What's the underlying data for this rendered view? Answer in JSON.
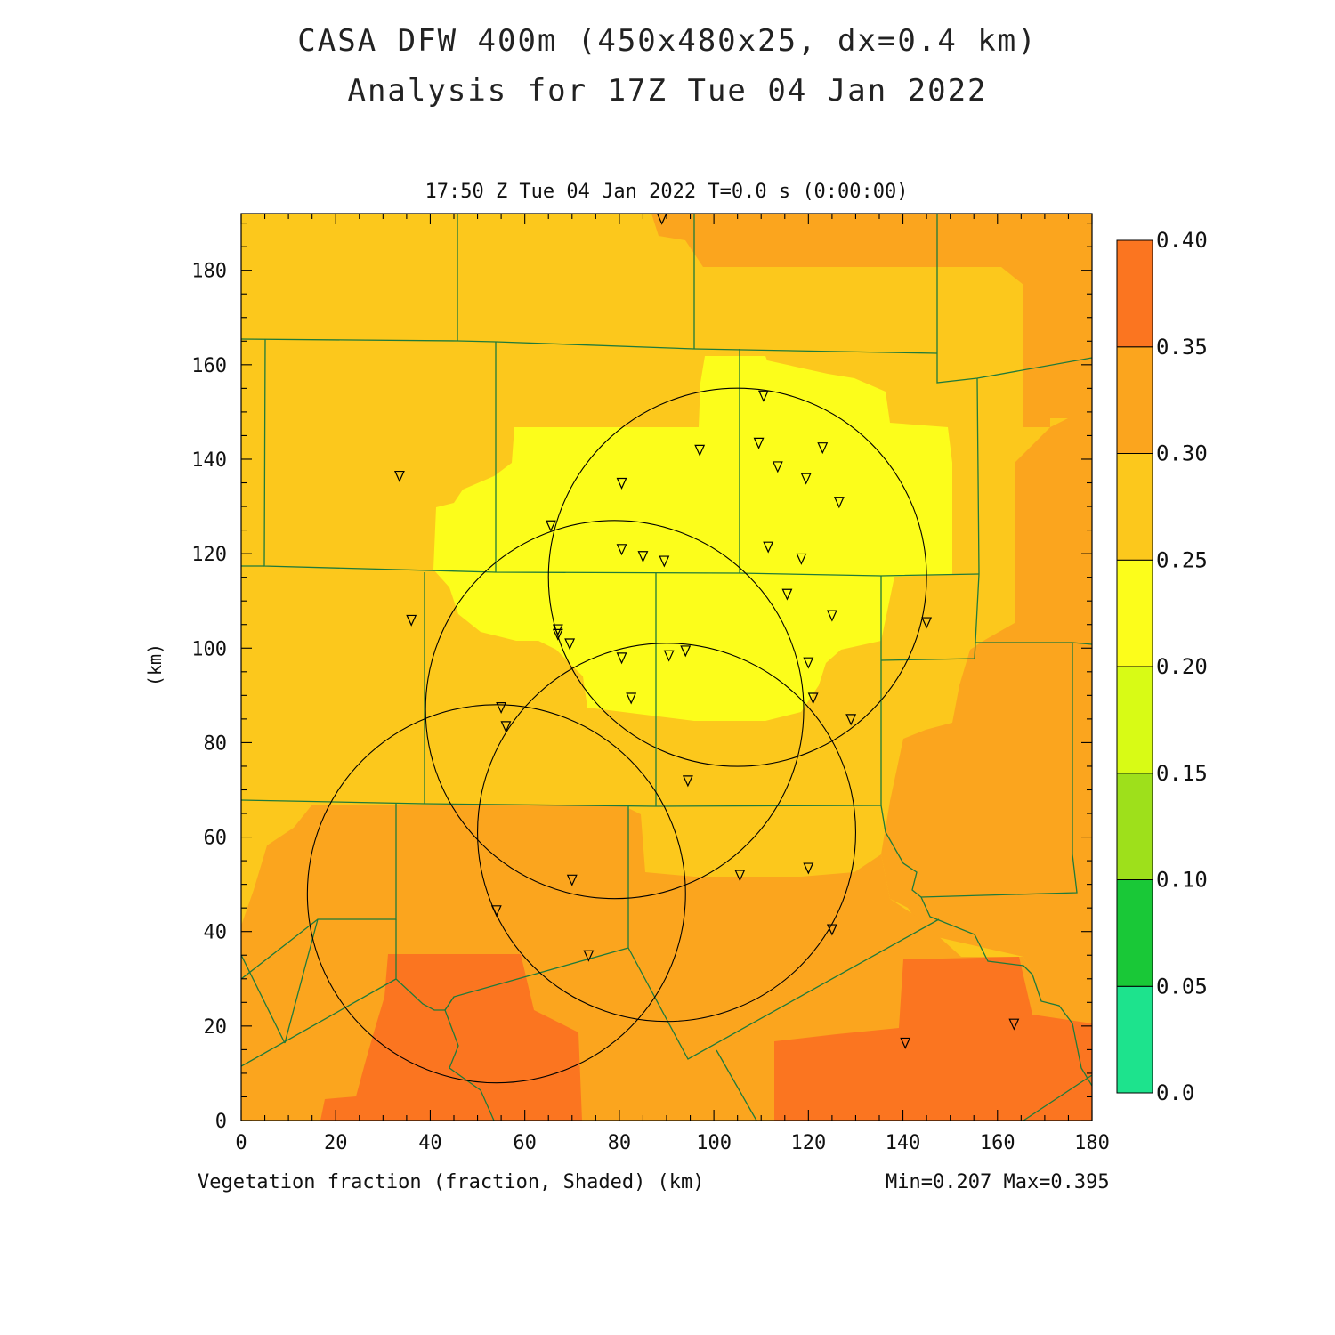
{
  "header": {
    "title_line1": "CASA DFW 400m (450x480x25, dx=0.4 km)",
    "title_line2": "Analysis for 17Z Tue 04 Jan 2022",
    "subtitle": "17:50 Z Tue 04 Jan 2022   T=0.0 s (0:00:00)"
  },
  "footer": {
    "variable_label": "Vegetation fraction (fraction, Shaded)  (km)",
    "minmax": "Min=0.207 Max=0.395"
  },
  "axes": {
    "x_ticks": [
      "0",
      "20",
      "40",
      "60",
      "80",
      "100",
      "120",
      "140",
      "160",
      "180"
    ],
    "y_ticks": [
      "0",
      "20",
      "40",
      "60",
      "80",
      "100",
      "120",
      "140",
      "160",
      "180"
    ],
    "y_label": "(km)",
    "xlim": [
      0,
      180
    ],
    "ylim": [
      0,
      192
    ]
  },
  "colorbar": {
    "labels": [
      "0.0",
      "0.05",
      "0.10",
      "0.15",
      "0.20",
      "0.25",
      "0.30",
      "0.35",
      "0.40"
    ],
    "colors": [
      "#1de38d",
      "#19c837",
      "#9ee01b",
      "#d8fb15",
      "#fcfd1b",
      "#fcc81c",
      "#fba51e",
      "#fb7520"
    ]
  },
  "chart_data": {
    "type": "heatmap",
    "range_min": 0.207,
    "range_max": 0.395,
    "radar_circles_km": [
      {
        "cx": 105,
        "cy": 115,
        "r": 40
      },
      {
        "cx": 79,
        "cy": 87,
        "r": 40
      },
      {
        "cx": 90,
        "cy": 61,
        "r": 40
      },
      {
        "cx": 54,
        "cy": 48,
        "r": 40
      }
    ],
    "stations_km": [
      [
        89,
        191
      ],
      [
        33.5,
        136.5
      ],
      [
        36,
        106
      ],
      [
        55,
        87.5
      ],
      [
        56,
        83.5
      ],
      [
        65.5,
        126
      ],
      [
        67,
        104
      ],
      [
        67,
        103
      ],
      [
        69.5,
        101
      ],
      [
        80.5,
        135
      ],
      [
        80.5,
        121
      ],
      [
        85,
        119.5
      ],
      [
        89.5,
        118.5
      ],
      [
        97,
        142
      ],
      [
        80.5,
        98
      ],
      [
        82.5,
        89.5
      ],
      [
        90.5,
        98.5
      ],
      [
        94,
        99.5
      ],
      [
        94.5,
        72
      ],
      [
        109.5,
        143.5
      ],
      [
        110.5,
        153.5
      ],
      [
        111.5,
        121.5
      ],
      [
        113.5,
        138.5
      ],
      [
        115.5,
        111.5
      ],
      [
        118.5,
        119
      ],
      [
        119.5,
        136
      ],
      [
        120,
        97
      ],
      [
        121,
        89.5
      ],
      [
        123,
        142.5
      ],
      [
        125,
        107
      ],
      [
        126.5,
        131
      ],
      [
        129,
        85
      ],
      [
        145,
        105.5
      ],
      [
        105.5,
        52
      ],
      [
        120,
        53.5
      ],
      [
        70,
        51
      ],
      [
        54,
        44.5
      ],
      [
        73.5,
        35
      ],
      [
        125,
        40.5
      ],
      [
        140.5,
        16.5
      ],
      [
        163.5,
        20.5
      ]
    ]
  }
}
